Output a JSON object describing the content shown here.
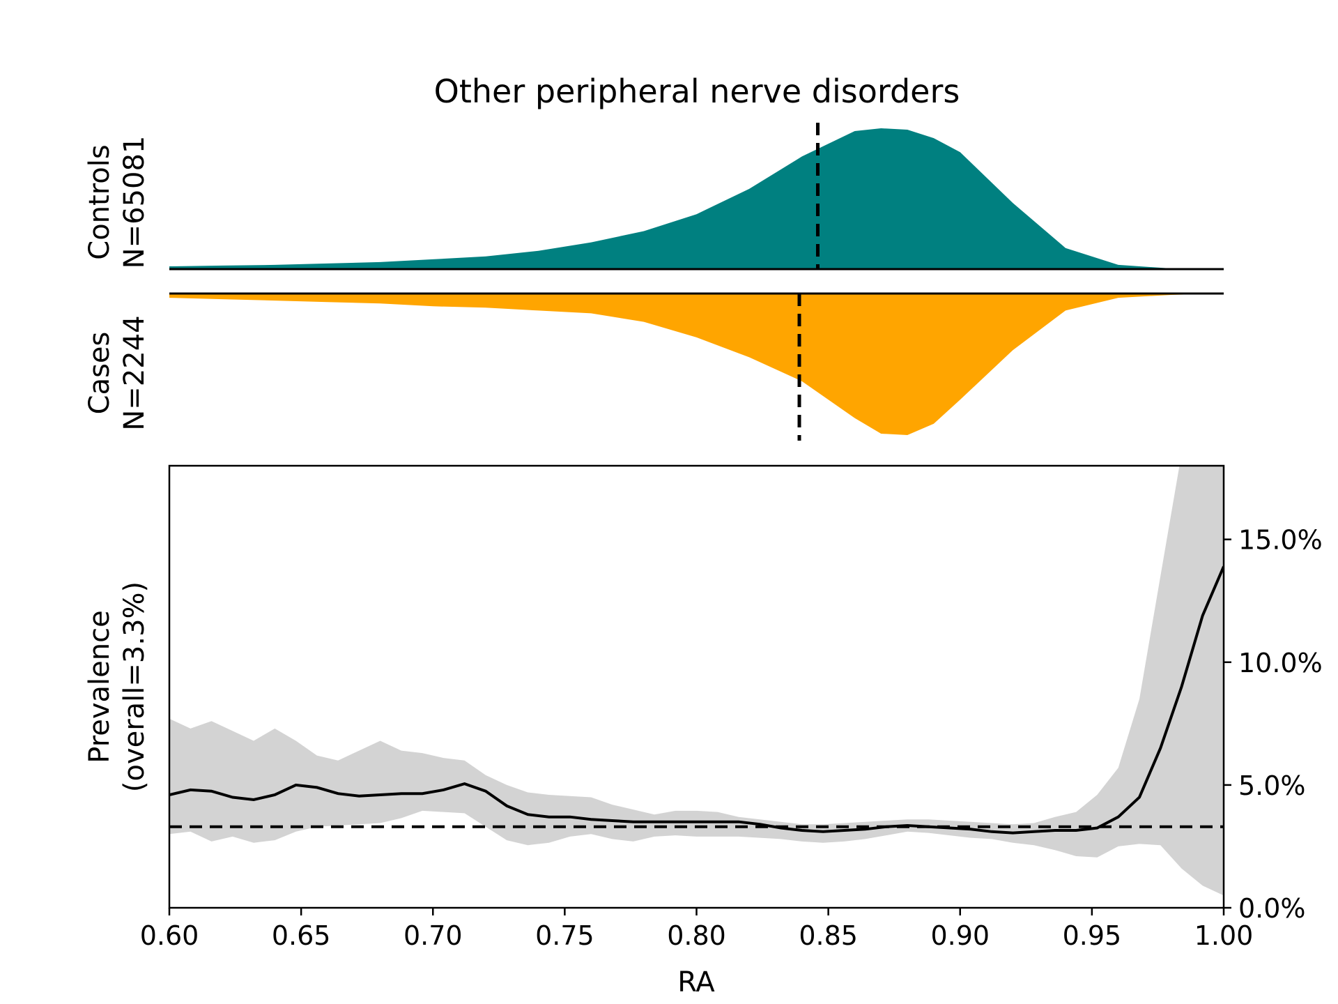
{
  "chart_data": {
    "title": "Other peripheral nerve disorders",
    "xlabel": "RA",
    "x_range": [
      0.6,
      1.0
    ],
    "x_ticks": [
      "0.60",
      "0.65",
      "0.70",
      "0.75",
      "0.80",
      "0.85",
      "0.90",
      "0.95",
      "1.00"
    ],
    "controls": {
      "type": "area",
      "label_line1": "Controls",
      "label_line2": "N=65081",
      "color": "#008080",
      "median": 0.846,
      "x": [
        0.6,
        0.62,
        0.64,
        0.66,
        0.68,
        0.7,
        0.72,
        0.74,
        0.76,
        0.78,
        0.8,
        0.82,
        0.84,
        0.86,
        0.87,
        0.88,
        0.89,
        0.9,
        0.92,
        0.94,
        0.96,
        0.98,
        1.0
      ],
      "density": [
        0.02,
        0.025,
        0.03,
        0.04,
        0.05,
        0.07,
        0.09,
        0.13,
        0.19,
        0.27,
        0.39,
        0.57,
        0.8,
        0.98,
        1.0,
        0.99,
        0.93,
        0.83,
        0.47,
        0.15,
        0.03,
        0.005,
        0.0
      ]
    },
    "cases": {
      "type": "area",
      "label_line1": "Cases",
      "label_line2": "N=2244",
      "color": "#FFA500",
      "median": 0.839,
      "x": [
        0.6,
        0.62,
        0.64,
        0.66,
        0.68,
        0.7,
        0.72,
        0.74,
        0.76,
        0.78,
        0.8,
        0.82,
        0.84,
        0.86,
        0.87,
        0.88,
        0.89,
        0.9,
        0.92,
        0.94,
        0.96,
        0.98,
        1.0
      ],
      "density": [
        0.03,
        0.04,
        0.05,
        0.06,
        0.07,
        0.09,
        0.1,
        0.12,
        0.14,
        0.2,
        0.31,
        0.45,
        0.62,
        0.88,
        0.99,
        1.0,
        0.92,
        0.75,
        0.4,
        0.12,
        0.03,
        0.01,
        0.0
      ]
    },
    "prevalence": {
      "type": "line",
      "ylabel_line1": "Prevalence",
      "ylabel_line2": "(overall=3.3%)",
      "y_range": [
        0,
        18
      ],
      "y_ticks": [
        "0.0%",
        "5.0%",
        "10.0%",
        "15.0%"
      ],
      "overall": 3.3,
      "x": [
        0.6,
        0.608,
        0.616,
        0.624,
        0.632,
        0.64,
        0.648,
        0.656,
        0.664,
        0.672,
        0.68,
        0.688,
        0.696,
        0.704,
        0.712,
        0.72,
        0.728,
        0.736,
        0.744,
        0.752,
        0.76,
        0.768,
        0.776,
        0.784,
        0.792,
        0.8,
        0.808,
        0.816,
        0.824,
        0.832,
        0.84,
        0.848,
        0.856,
        0.864,
        0.872,
        0.88,
        0.888,
        0.896,
        0.904,
        0.912,
        0.92,
        0.928,
        0.936,
        0.944,
        0.952,
        0.96,
        0.968,
        0.976,
        0.984,
        0.992,
        1.0
      ],
      "y": [
        4.6,
        4.8,
        4.75,
        4.5,
        4.4,
        4.6,
        5.0,
        4.9,
        4.65,
        4.55,
        4.6,
        4.65,
        4.65,
        4.8,
        5.05,
        4.75,
        4.15,
        3.8,
        3.7,
        3.7,
        3.6,
        3.55,
        3.5,
        3.5,
        3.5,
        3.5,
        3.5,
        3.5,
        3.4,
        3.25,
        3.15,
        3.1,
        3.15,
        3.2,
        3.3,
        3.35,
        3.3,
        3.25,
        3.2,
        3.1,
        3.05,
        3.1,
        3.15,
        3.15,
        3.25,
        3.7,
        4.5,
        6.5,
        9.0,
        11.9,
        13.9
      ],
      "ci_upper": [
        7.7,
        7.3,
        7.6,
        7.2,
        6.8,
        7.3,
        6.8,
        6.2,
        6.0,
        6.4,
        6.8,
        6.4,
        6.3,
        6.1,
        6.0,
        5.4,
        5.0,
        4.7,
        4.6,
        4.55,
        4.5,
        4.2,
        4.0,
        3.8,
        3.95,
        3.95,
        3.9,
        3.7,
        3.6,
        3.5,
        3.4,
        3.4,
        3.45,
        3.5,
        3.55,
        3.6,
        3.6,
        3.55,
        3.5,
        3.45,
        3.4,
        3.45,
        3.7,
        3.9,
        4.6,
        5.7,
        8.5,
        13.5,
        18.5,
        25,
        30
      ],
      "ci_lower": [
        3.0,
        3.1,
        2.7,
        2.9,
        2.65,
        2.75,
        3.1,
        3.3,
        3.35,
        3.4,
        3.45,
        3.65,
        3.95,
        3.9,
        3.85,
        3.3,
        2.75,
        2.55,
        2.65,
        2.9,
        3.0,
        2.8,
        2.7,
        2.9,
        2.95,
        2.9,
        2.9,
        2.9,
        2.85,
        2.8,
        2.7,
        2.65,
        2.7,
        2.8,
        2.95,
        3.1,
        3.05,
        2.95,
        2.85,
        2.8,
        2.65,
        2.55,
        2.35,
        2.1,
        2.05,
        2.5,
        2.6,
        2.55,
        1.6,
        0.9,
        0.5
      ]
    }
  }
}
